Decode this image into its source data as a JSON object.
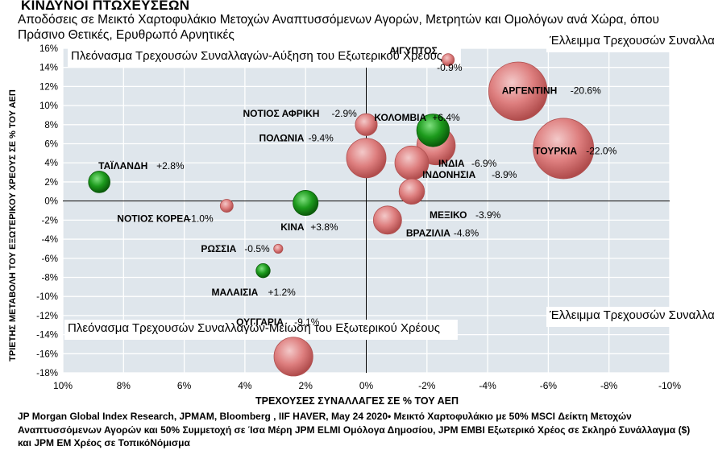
{
  "title": "ΚΙΝΔΥΝΟΙ ΠΤΩΧΕΥΣΕΩΝ",
  "subtitle": "Αποδόσεις σε Μεικτό Χαρτοφυλάκιο Μετοχών Αναπτυσσόμενων Αγορών, Μετρητών και Ομολόγων ανά Χώρα, όπου Πράσινο Θετικές, Ερυθρωπό Αρνητικές",
  "source": "JP Morgan Global Index Research, JPMAM, Bloomberg , IIF HAVER, May 24 2020• Μεικτό Χαρτοφυλάκιο με 50% MSCI Δείκτη Μετοχών Αναπτυσσόμενων Αγορών και 50% Συμμετοχή σε Ίσα Μέρη JPM ELMI Ομόλογα Δημοσίου, JPM EMBI Εξωτερικό Χρέος σε Σκληρό Συνάλλαγμα ($) και JPM EM Χρέος σε ΤοπικόΝόμισμα",
  "colors": {
    "positive": "#1c8c1c",
    "negative": "#e08080",
    "plot_bg": "#dfe6ec",
    "grid": "#ffffff"
  },
  "chart_data": {
    "type": "scatter",
    "title": "ΚΙΝΔΥΝΟΙ ΠΤΩΧΕΥΣΕΩΝ",
    "xlabel": "ΤΡΕΧΟΥΣΕΣ ΣΥΝΑΛΛΑΓΕΣ ΣΕ % ΤΟΥ ΑΕΠ",
    "ylabel": "ΤΡΙΕΤΗΣ ΜΕΤΑΒΟΛΗ ΤΟΥ ΕΞΩΤΕΡΙΚΟΥ ΧΡΕΟΥΣ ΣΕ % ΤΟΥ ΑΕΠ",
    "xlim": [
      10,
      -10
    ],
    "ylim": [
      -18,
      16
    ],
    "x_reversed": true,
    "x_ticks": [
      "10%",
      "8%",
      "6%",
      "4%",
      "2%",
      "0%",
      "-2%",
      "-4%",
      "-6%",
      "-8%",
      "-10%"
    ],
    "y_ticks": [
      "16%",
      "14%",
      "12%",
      "10%",
      "8%",
      "6%",
      "4%",
      "2%",
      "0%",
      "-2%",
      "-4%",
      "-6%",
      "-8%",
      "-10%",
      "-12%",
      "-14%",
      "-16%",
      "-18%"
    ],
    "grid": true,
    "quadrants": [
      {
        "position": "top-left",
        "text": "Πλεόνασμα Τρεχουσών Συναλλαγών-Αύξηση του Εξωτερικού Χρέους"
      },
      {
        "position": "top-right",
        "text": "Έλλειμμα Τρεχουσών Συναλλαγών-Αύξηση του Εξωτερικού Χρέους"
      },
      {
        "position": "bottom-left",
        "text": "Πλεόνασμα Τρεχουσών Συναλλαγών-Μείωση του Εξωτερικού Χρέους"
      },
      {
        "position": "bottom-right",
        "text": "Έλλειμμα Τρεχουσών Συναλλαγών-Μείωση του Εξωτερικού Χρέους"
      }
    ],
    "points": [
      {
        "country": "ΑΙΓΥΠΤΟΣ",
        "value": "-0.9%",
        "x": -2.7,
        "y": 14.8,
        "ret": -0.9
      },
      {
        "country": "ΑΡΓΕΝΤΙΝΗ",
        "value": "-20.6%",
        "x": -5.0,
        "y": 11.5,
        "ret": -20.6
      },
      {
        "country": "ΚΟΛΟΜΒΙΑ",
        "value": "+6.4%",
        "x": -2.2,
        "y": 7.4,
        "ret": 6.4
      },
      {
        "country": "ΝΟΤΙΟΣ ΑΦΡΙΚΗ",
        "value": "-2.9%",
        "x": 0.0,
        "y": 8.0,
        "ret": -2.9
      },
      {
        "country": "ΠΟΛΩΝΙΑ",
        "value": "-9.4%",
        "x": 0.0,
        "y": 4.5,
        "ret": -9.4
      },
      {
        "country": "ΤΟΥΡΚΙΑ",
        "value": "-22.0%",
        "x": -6.5,
        "y": 5.5,
        "ret": -22.0
      },
      {
        "country": "ΙΝΔΟΝΗΣΙΑ",
        "value": "-8.9%",
        "x": -2.3,
        "y": 5.8,
        "ret": -8.9
      },
      {
        "country": "ΙΝΔΙΑ",
        "value": "-6.9%",
        "x": -1.5,
        "y": 4.0,
        "ret": -6.9
      },
      {
        "country": "ΜΕΞΙΚΟ",
        "value": "-3.9%",
        "x": -1.5,
        "y": 1.0,
        "ret": -3.9
      },
      {
        "country": "ΤΑΪΛΑΝΔΗ",
        "value": "+2.8%",
        "x": 8.8,
        "y": 2.0,
        "ret": 2.8
      },
      {
        "country": "ΝΟΤΙΟΣ ΚΟΡΕΑ",
        "value": "-1.0%",
        "x": 4.6,
        "y": -0.5,
        "ret": -1.0
      },
      {
        "country": "ΚΙΝΑ",
        "value": "+3.8%",
        "x": 2.0,
        "y": -0.2,
        "ret": 3.8
      },
      {
        "country": "ΒΡΑΖΙΛΙΑ",
        "value": "-4.8%",
        "x": -0.7,
        "y": -2.0,
        "ret": -4.8
      },
      {
        "country": "ΡΩΣΣΙΑ",
        "value": "-0.5%",
        "x": 2.9,
        "y": -5.0,
        "ret": -0.5
      },
      {
        "country": "ΜΑΛΑΙΣΙΑ",
        "value": "+1.2%",
        "x": 3.4,
        "y": -7.3,
        "ret": 1.2
      },
      {
        "country": "ΟΥΓΓΑΡΙΑ",
        "value": "-9.1%",
        "x": 2.4,
        "y": -16.3,
        "ret": -9.1
      }
    ]
  }
}
